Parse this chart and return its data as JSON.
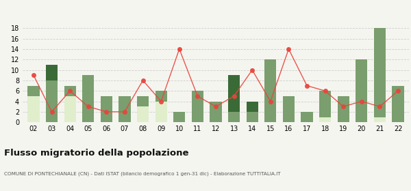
{
  "years": [
    "02",
    "03",
    "04",
    "05",
    "06",
    "07",
    "08",
    "09",
    "10",
    "11",
    "12",
    "13",
    "14",
    "15",
    "16",
    "17",
    "18",
    "19",
    "20",
    "21",
    "22"
  ],
  "iscritti_altri_comuni": [
    2,
    8,
    2,
    9,
    5,
    5,
    2,
    2,
    2,
    6,
    4,
    2,
    2,
    12,
    5,
    2,
    5,
    5,
    12,
    17,
    7
  ],
  "iscritti_estero": [
    5,
    0,
    5,
    0,
    0,
    0,
    3,
    4,
    0,
    0,
    0,
    0,
    0,
    0,
    0,
    0,
    1,
    0,
    0,
    1,
    0
  ],
  "iscritti_altri": [
    0,
    3,
    0,
    0,
    0,
    0,
    0,
    0,
    0,
    0,
    0,
    7,
    2,
    0,
    0,
    0,
    0,
    0,
    0,
    0,
    0
  ],
  "cancellati": [
    9,
    2,
    6,
    3,
    2,
    2,
    8,
    4,
    14,
    5,
    3,
    5,
    10,
    4,
    14,
    7,
    6,
    3,
    4,
    3,
    6
  ],
  "color_altri_comuni": "#7a9e6e",
  "color_estero": "#e0eecc",
  "color_altri": "#3a6b37",
  "color_cancellati": "#e8453c",
  "title": "Flusso migratorio della popolazione",
  "subtitle": "COMUNE DI PONTECHIANALE (CN) - Dati ISTAT (bilancio demografico 1 gen-31 dic) - Elaborazione TUTTITALIA.IT",
  "ylim": [
    0,
    19
  ],
  "yticks": [
    0,
    2,
    4,
    6,
    8,
    10,
    12,
    14,
    16,
    18
  ],
  "bg_color": "#f5f5f0",
  "grid_color": "#cccccc"
}
